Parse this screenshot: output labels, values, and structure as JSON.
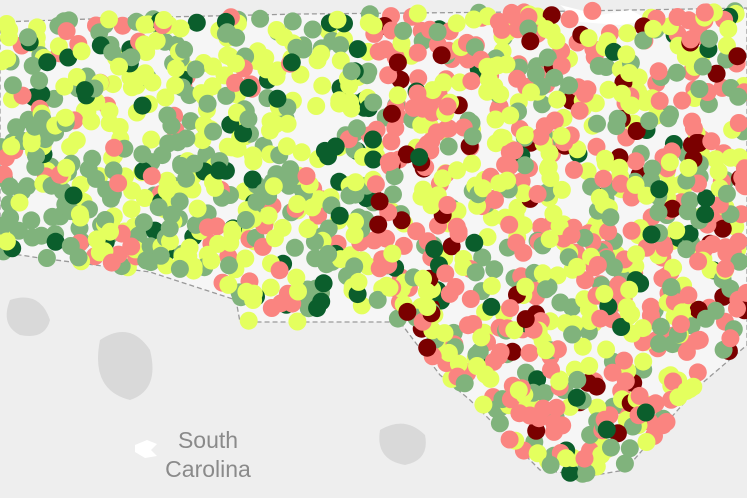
{
  "map": {
    "region_label": [
      "South",
      "Carolina"
    ]
  }
}
